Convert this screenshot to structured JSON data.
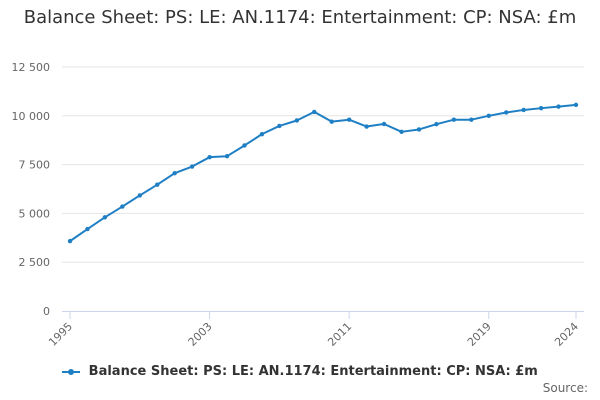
{
  "colors": {
    "series": "#1f7fc4",
    "grid": "#e6e6e6",
    "axis": "#ccd6eb",
    "text": "#333333"
  },
  "source_label": "Source:",
  "chart_data": {
    "type": "line",
    "title": "Balance Sheet: PS: LE: AN.1174: Entertainment: CP: NSA: £m",
    "xlabel": "",
    "ylabel": "",
    "ylim": [
      0,
      12500
    ],
    "yticks": [
      0,
      2500,
      5000,
      7500,
      10000,
      12500
    ],
    "ytick_labels": [
      "0",
      "2 500",
      "5 000",
      "7 500",
      "10 000",
      "12 500"
    ],
    "xlim": [
      1995,
      2024
    ],
    "xticks": [
      1995,
      2003,
      2011,
      2019,
      2024
    ],
    "xtick_labels": [
      "1995",
      "2003",
      "2011",
      "2019",
      "2024"
    ],
    "grid": true,
    "legend_position": "bottom",
    "x": [
      1995,
      1996,
      1997,
      1998,
      1999,
      2000,
      2001,
      2002,
      2003,
      2004,
      2005,
      2006,
      2007,
      2008,
      2009,
      2010,
      2011,
      2012,
      2013,
      2014,
      2015,
      2016,
      2017,
      2018,
      2019,
      2020,
      2021,
      2022,
      2023,
      2024
    ],
    "series": [
      {
        "name": "Balance Sheet: PS: LE: AN.1174: Entertainment: CP: NSA: £m",
        "values": [
          3580,
          4200,
          4800,
          5350,
          5920,
          6470,
          7060,
          7400,
          7880,
          7930,
          8480,
          9060,
          9480,
          9760,
          10200,
          9700,
          9800,
          9450,
          9580,
          9180,
          9300,
          9570,
          9800,
          9800,
          10000,
          10170,
          10300,
          10390,
          10470,
          10560
        ]
      }
    ]
  }
}
